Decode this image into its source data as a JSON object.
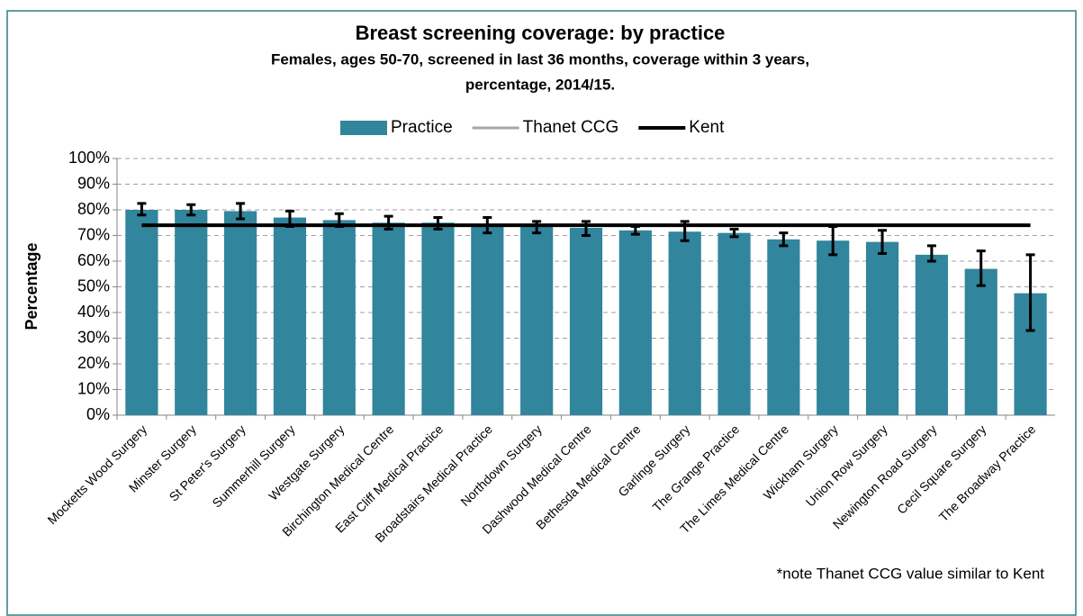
{
  "chart_data": {
    "type": "bar",
    "title": "Breast screening coverage: by practice",
    "subtitle": [
      "Females, ages 50-70, screened in last 36 months, coverage within 3 years,",
      "percentage, 2014/15."
    ],
    "y_label": "Percentage",
    "note": "*note Thanet CCG value similar to Kent",
    "categories": [
      "Mocketts Wood Surgery",
      "Minster Surgery",
      "St Peter's Surgery",
      "Summerhill Surgery",
      "Westgate Surgery",
      "Birchington Medical Centre",
      "East Cliff Medical Practice",
      "Broadstairs Medical Practice",
      "Northdown Surgery",
      "Dashwood Medical Centre",
      "Bethesda Medical Centre",
      "Garlinge Surgery",
      "The Grange Practice",
      "The Limes Medical Centre",
      "Wickham Surgery",
      "Union Row Surgery",
      "Newington Road Surgery",
      "Cecil Square Surgery",
      "The Broadway Practice"
    ],
    "series": [
      {
        "name": "Practice",
        "color": "#31859c",
        "values": [
          80,
          80,
          79.5,
          77,
          76,
          75,
          75,
          74,
          73.5,
          73,
          72,
          71.5,
          71,
          68.5,
          68,
          67.5,
          62.5,
          57,
          47.5
        ],
        "ci_lower": [
          78,
          78,
          76.5,
          73.5,
          73.5,
          72.5,
          72.5,
          71,
          71,
          70,
          70.5,
          68,
          69.5,
          66,
          62.5,
          63,
          60,
          50.5,
          33
        ],
        "ci_upper": [
          82.5,
          82,
          82.5,
          79.5,
          78.5,
          77.5,
          77,
          77,
          75.5,
          75.5,
          73.5,
          75.5,
          72.5,
          71,
          73.5,
          72,
          66,
          64,
          62.5
        ]
      },
      {
        "name": "Thanet CCG",
        "color": "#a6a6a6",
        "value": 74
      },
      {
        "name": "Kent",
        "color": "#000000",
        "value": 74
      }
    ],
    "ylim": [
      0,
      100
    ],
    "yticks": [
      {
        "value": 0,
        "label": "0%"
      },
      {
        "value": 10,
        "label": "10%"
      },
      {
        "value": 20,
        "label": "20%"
      },
      {
        "value": 30,
        "label": "30%"
      },
      {
        "value": 40,
        "label": "40%"
      },
      {
        "value": 50,
        "label": "50%"
      },
      {
        "value": 60,
        "label": "60%"
      },
      {
        "value": 70,
        "label": "70%"
      },
      {
        "value": 80,
        "label": "80%"
      },
      {
        "value": 90,
        "label": "90%"
      },
      {
        "value": 100,
        "label": "100%"
      }
    ],
    "grid": true,
    "legend": "top"
  }
}
